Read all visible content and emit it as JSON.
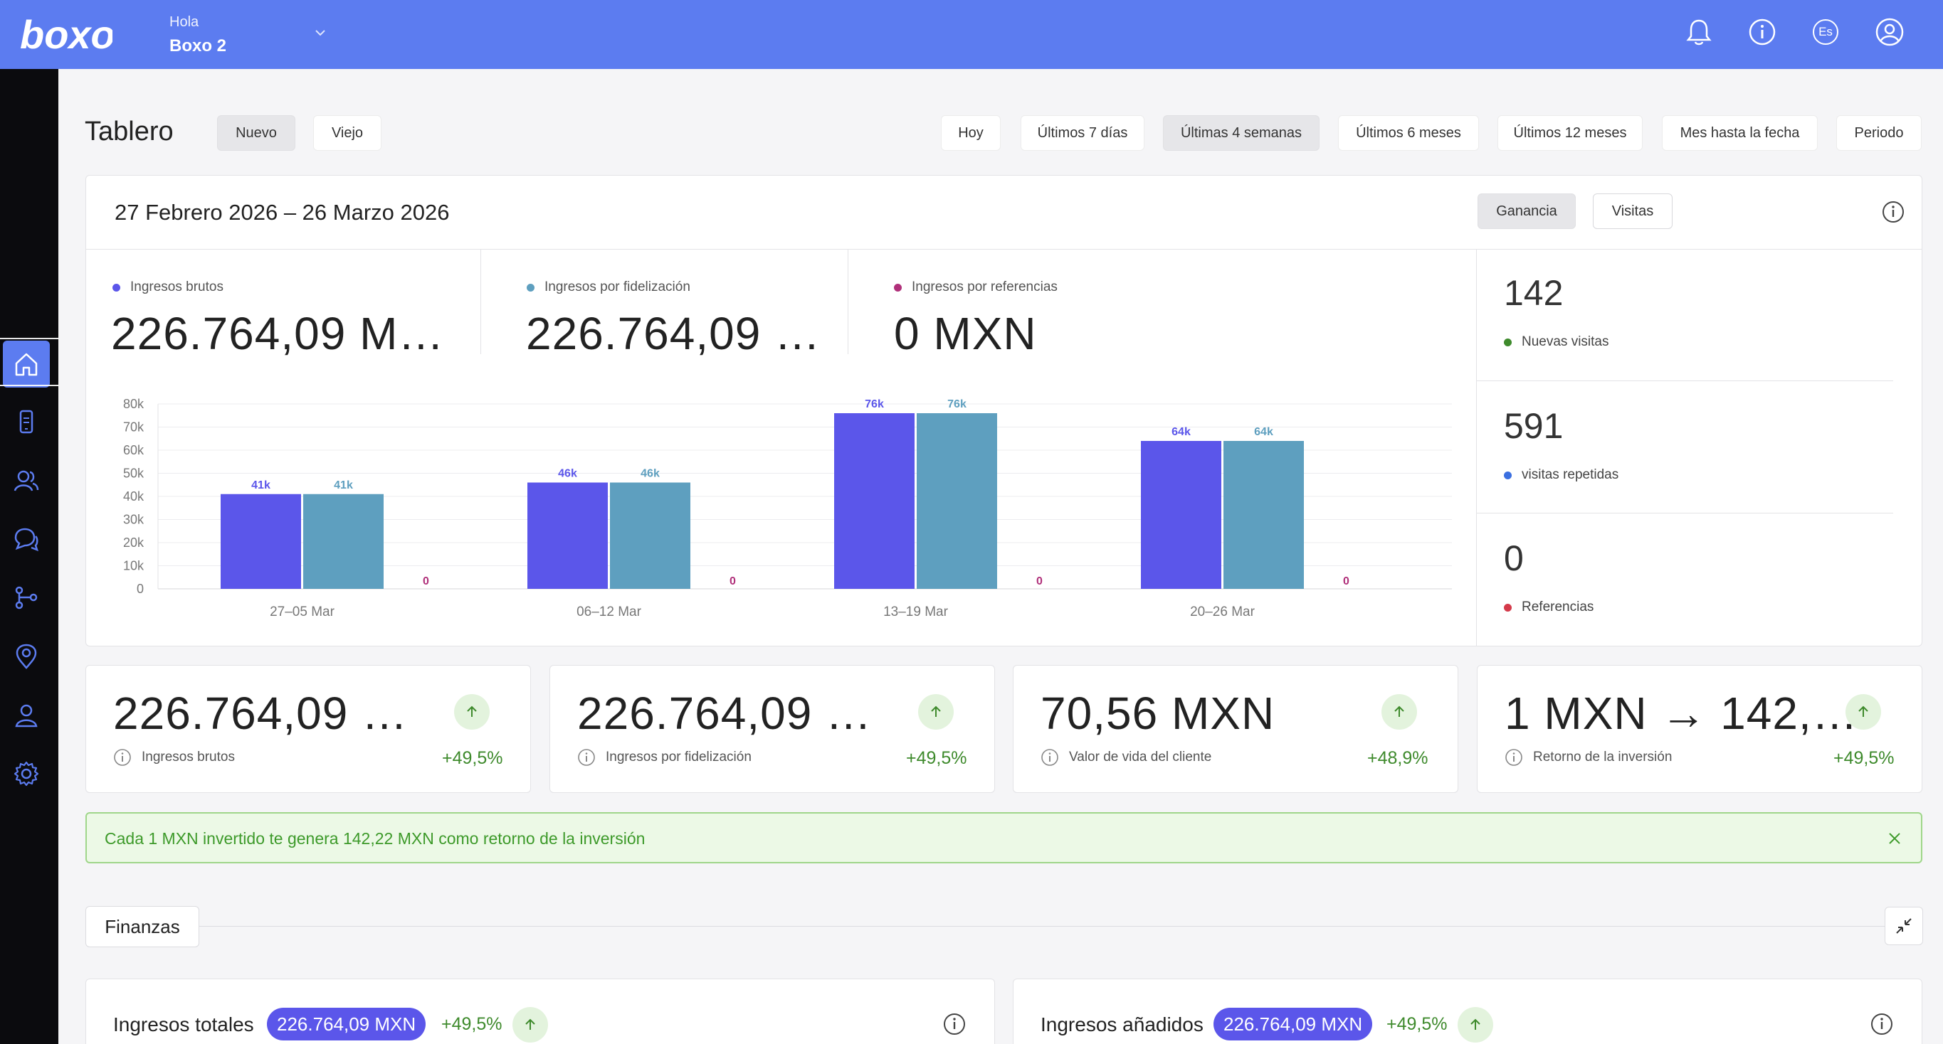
{
  "header": {
    "logo_text": "boxo",
    "greeting": "Hola",
    "user_name": "Boxo 2",
    "language": "Es"
  },
  "page": {
    "title": "Tablero",
    "version_tabs": [
      "Nuevo",
      "Viejo"
    ],
    "range_tabs": [
      "Hoy",
      "Últimos 7 días",
      "Últimas 4 semanas",
      "Últimos 6 meses",
      "Últimos 12 meses",
      "Mes hasta la fecha",
      "Periodo"
    ],
    "active_range": "Últimas 4 semanas"
  },
  "overview": {
    "date_range": "27 Febrero 2026 – 26 Marzo 2026",
    "mode_tabs": [
      "Ganancia",
      "Visitas"
    ],
    "active_mode": "Ganancia",
    "kpis": [
      {
        "label": "Ingresos brutos",
        "value": "226.764,09 M…",
        "color": "#5b56ea"
      },
      {
        "label": "Ingresos por fidelización",
        "value": "226.764,09 …",
        "color": "#5e9fbf"
      },
      {
        "label": "Ingresos por referencias",
        "value": "0 MXN",
        "color": "#b0307a"
      }
    ],
    "side_stats": [
      {
        "value": "142",
        "label": "Nuevas visitas",
        "color": "#3e8a2c"
      },
      {
        "value": "591",
        "label": "visitas repetidas",
        "color": "#3b6fe0"
      },
      {
        "value": "0",
        "label": "Referencias",
        "color": "#d43a4a"
      }
    ]
  },
  "chart_data": {
    "type": "bar",
    "categories": [
      "27–05 Mar",
      "06–12 Mar",
      "13–19 Mar",
      "20–26 Mar"
    ],
    "series": [
      {
        "name": "Ingresos brutos",
        "values": [
          41000,
          46000,
          76000,
          64000
        ],
        "labels": [
          "41k",
          "46k",
          "76k",
          "64k"
        ],
        "color": "#5b56ea"
      },
      {
        "name": "Ingresos por fidelización",
        "values": [
          41000,
          46000,
          76000,
          64000
        ],
        "labels": [
          "41k",
          "46k",
          "76k",
          "64k"
        ],
        "color": "#5e9fbf"
      },
      {
        "name": "Ingresos por referencias",
        "values": [
          0,
          0,
          0,
          0
        ],
        "labels": [
          "0",
          "0",
          "0",
          "0"
        ],
        "color": "#b0307a"
      }
    ],
    "yticks": [
      "0",
      "10k",
      "20k",
      "30k",
      "40k",
      "50k",
      "60k",
      "70k",
      "80k"
    ],
    "ylim": [
      0,
      80000
    ],
    "grid": true
  },
  "mini_cards": [
    {
      "value": "226.764,09 …",
      "label": "Ingresos brutos",
      "delta": "+49,5%"
    },
    {
      "value": "226.764,09 …",
      "label": "Ingresos por fidelización",
      "delta": "+49,5%"
    },
    {
      "value": "70,56 MXN",
      "label": "Valor de vida del cliente",
      "delta": "+48,9%"
    },
    {
      "value": "1 MXN → 142,…",
      "label": "Retorno de la inversión",
      "delta": "+49,5%"
    }
  ],
  "banner": {
    "text": "Cada 1 MXN invertido te genera 142,22 MXN como retorno de la inversión"
  },
  "finance": {
    "section_title": "Finanzas",
    "cards": [
      {
        "title": "Ingresos totales",
        "amount": "226.764,09 MXN",
        "delta": "+49,5%"
      },
      {
        "title": "Ingresos añadidos",
        "amount": "226.764,09 MXN",
        "delta": "+49,5%"
      }
    ]
  },
  "icons": {
    "top": [
      "bell-icon",
      "info-icon",
      "language-icon",
      "user-icon"
    ],
    "sidebar": [
      "home-icon",
      "phone-icon",
      "users-icon",
      "chat-icon",
      "flow-icon",
      "location-icon",
      "profile-icon",
      "settings-icon"
    ]
  }
}
